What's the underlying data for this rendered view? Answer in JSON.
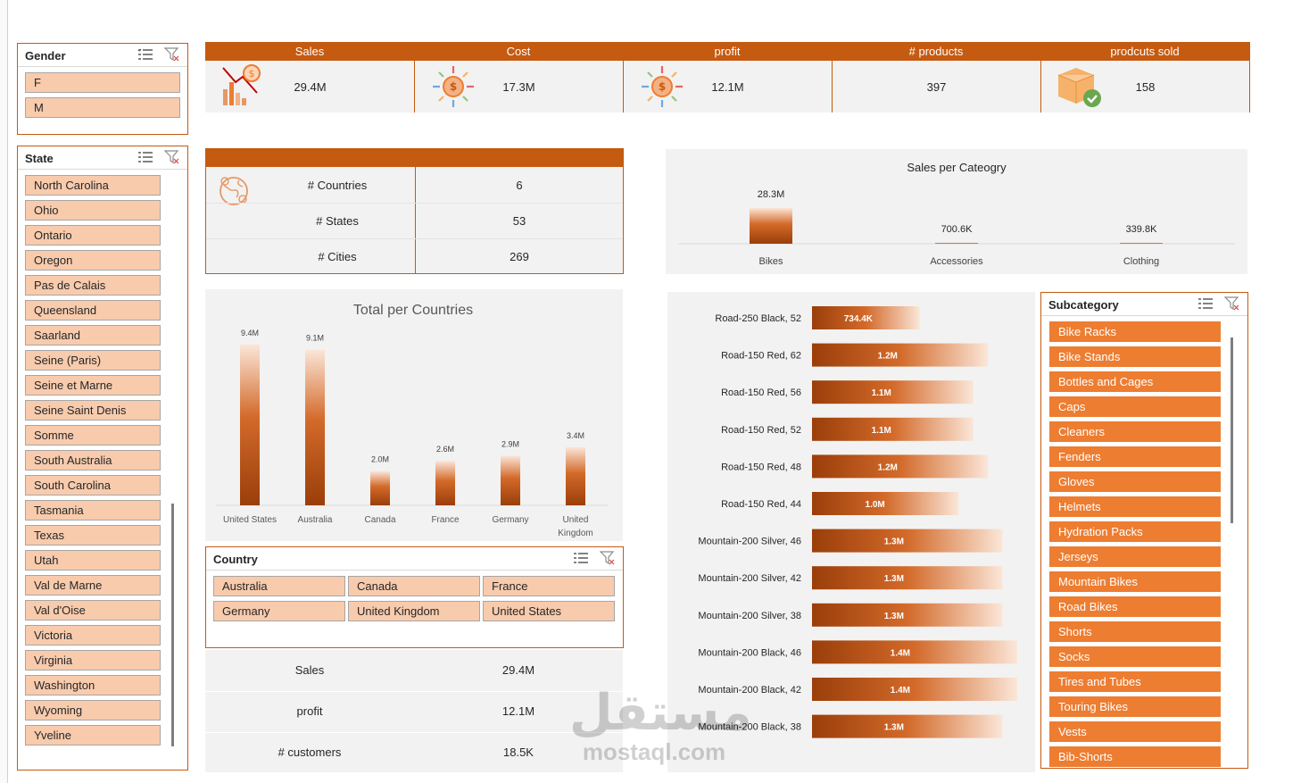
{
  "gender_slicer": {
    "title": "Gender",
    "items": [
      "F",
      "M"
    ]
  },
  "state_slicer": {
    "title": "State",
    "items": [
      "North Carolina",
      "Ohio",
      "Ontario",
      "Oregon",
      "Pas de Calais",
      "Queensland",
      "Saarland",
      "Seine (Paris)",
      "Seine et Marne",
      "Seine Saint Denis",
      "Somme",
      "South Australia",
      "South Carolina",
      "Tasmania",
      "Texas",
      "Utah",
      "Val de Marne",
      "Val d'Oise",
      "Victoria",
      "Virginia",
      "Washington",
      "Wyoming",
      "Yveline"
    ]
  },
  "kpis": [
    {
      "label": "Sales",
      "value": "29.4M",
      "icon": "sales-chart-icon"
    },
    {
      "label": "Cost",
      "value": "17.3M",
      "icon": "coin-burst-icon"
    },
    {
      "label": "profit",
      "value": "12.1M",
      "icon": "coin-burst-icon"
    },
    {
      "label": "# products",
      "value": "397",
      "icon": ""
    },
    {
      "label": "prodcuts sold",
      "value": "158",
      "icon": "box-check-icon"
    }
  ],
  "geo_table": {
    "rows": [
      {
        "label": "# Countries",
        "value": "6"
      },
      {
        "label": "# States",
        "value": "53"
      },
      {
        "label": "# Cities",
        "value": "269"
      }
    ]
  },
  "summary_table": {
    "rows": [
      {
        "label": "Sales",
        "value": "29.4M"
      },
      {
        "label": "profit",
        "value": "12.1M"
      },
      {
        "label": "# customers",
        "value": "18.5K"
      }
    ]
  },
  "country_slicer": {
    "title": "Country",
    "items": [
      "Australia",
      "Canada",
      "France",
      "Germany",
      "United Kingdom",
      "United States"
    ]
  },
  "subcategory_slicer": {
    "title": "Subcategory",
    "items": [
      "Bike Racks",
      "Bike Stands",
      "Bottles and Cages",
      "Caps",
      "Cleaners",
      "Fenders",
      "Gloves",
      "Helmets",
      "Hydration Packs",
      "Jerseys",
      "Mountain Bikes",
      "Road Bikes",
      "Shorts",
      "Socks",
      "Tires and Tubes",
      "Touring Bikes",
      "Vests",
      "Bib-Shorts"
    ]
  },
  "watermark": {
    "arabic": "مستقل",
    "latin": "mostaql.com"
  },
  "colors": {
    "accent": "#c55a11",
    "accent_light": "#f8cbad",
    "orange": "#ed7d31",
    "panel": "#f2f2f2"
  },
  "chart_data": [
    {
      "type": "bar",
      "title": "Sales per Cateogry",
      "categories": [
        "Bikes",
        "Accessories",
        "Clothing"
      ],
      "values": [
        28.3,
        0.7006,
        0.3398
      ],
      "data_labels": [
        "28.3M",
        "700.6K",
        "339.8K"
      ],
      "unit": "M"
    },
    {
      "type": "bar",
      "title": "Total per Countries",
      "categories": [
        "United States",
        "Australia",
        "Canada",
        "France",
        "Germany",
        "United Kingdom"
      ],
      "values": [
        9.4,
        9.1,
        2.0,
        2.6,
        2.9,
        3.4
      ],
      "data_labels": [
        "9.4M",
        "9.1M",
        "2.0M",
        "2.6M",
        "2.9M",
        "3.4M"
      ],
      "unit": "M"
    },
    {
      "type": "bar",
      "orientation": "horizontal",
      "title": "",
      "categories": [
        "Road-250 Black, 52",
        "Road-150 Red, 62",
        "Road-150 Red, 56",
        "Road-150 Red, 52",
        "Road-150 Red, 48",
        "Road-150 Red, 44",
        "Mountain-200 Silver, 46",
        "Mountain-200 Silver, 42",
        "Mountain-200 Silver, 38",
        "Mountain-200 Black, 46",
        "Mountain-200 Black, 42",
        "Mountain-200 Black, 38"
      ],
      "values": [
        0.7344,
        1.2,
        1.1,
        1.1,
        1.2,
        1.0,
        1.3,
        1.3,
        1.3,
        1.4,
        1.4,
        1.3
      ],
      "data_labels": [
        "734.4K",
        "1.2M",
        "1.1M",
        "1.1M",
        "1.2M",
        "1.0M",
        "1.3M",
        "1.3M",
        "1.3M",
        "1.4M",
        "1.4M",
        "1.3M"
      ],
      "unit": "M"
    }
  ]
}
